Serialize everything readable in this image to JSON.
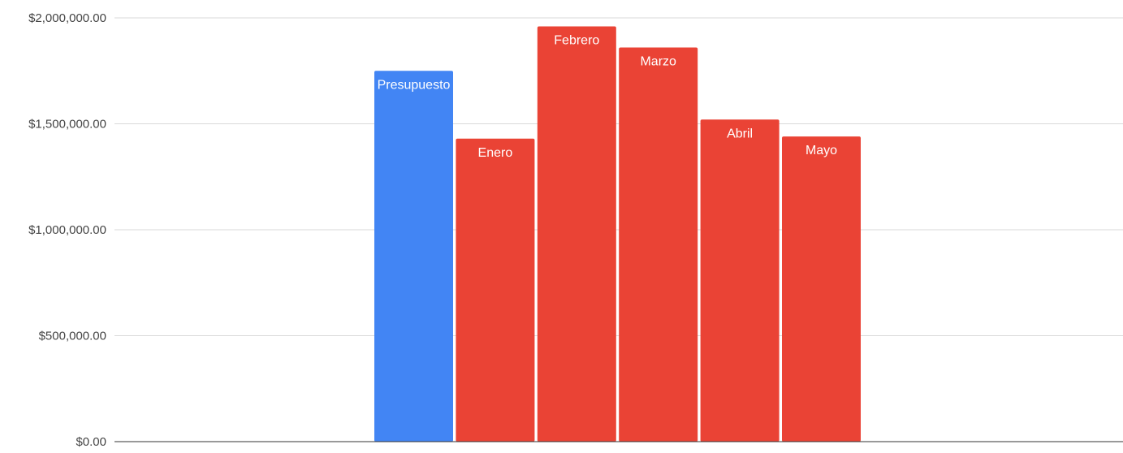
{
  "chart_data": {
    "type": "bar",
    "title": "",
    "xlabel": "",
    "ylabel": "",
    "ylim": [
      0,
      2000000
    ],
    "yticks": [
      0,
      500000,
      1000000,
      1500000,
      2000000
    ],
    "ytick_labels": [
      "$0.00",
      "$500,000.00",
      "$1,000,000.00",
      "$1,500,000.00",
      "$2,000,000.00"
    ],
    "grid": true,
    "legend": "none",
    "categories": [
      "Presupuesto",
      "Enero",
      "Febrero",
      "Marzo",
      "Abril",
      "Mayo"
    ],
    "values": [
      1750000,
      1430000,
      1960000,
      1860000,
      1520000,
      1440000
    ],
    "bar_colors": [
      "#4285f4",
      "#ea4335",
      "#ea4335",
      "#ea4335",
      "#ea4335",
      "#ea4335"
    ],
    "colors": {
      "grid": "#d9d9d9",
      "axis": "#333333",
      "tick_text": "#444444",
      "bar_label_text": "#ffffff"
    }
  }
}
